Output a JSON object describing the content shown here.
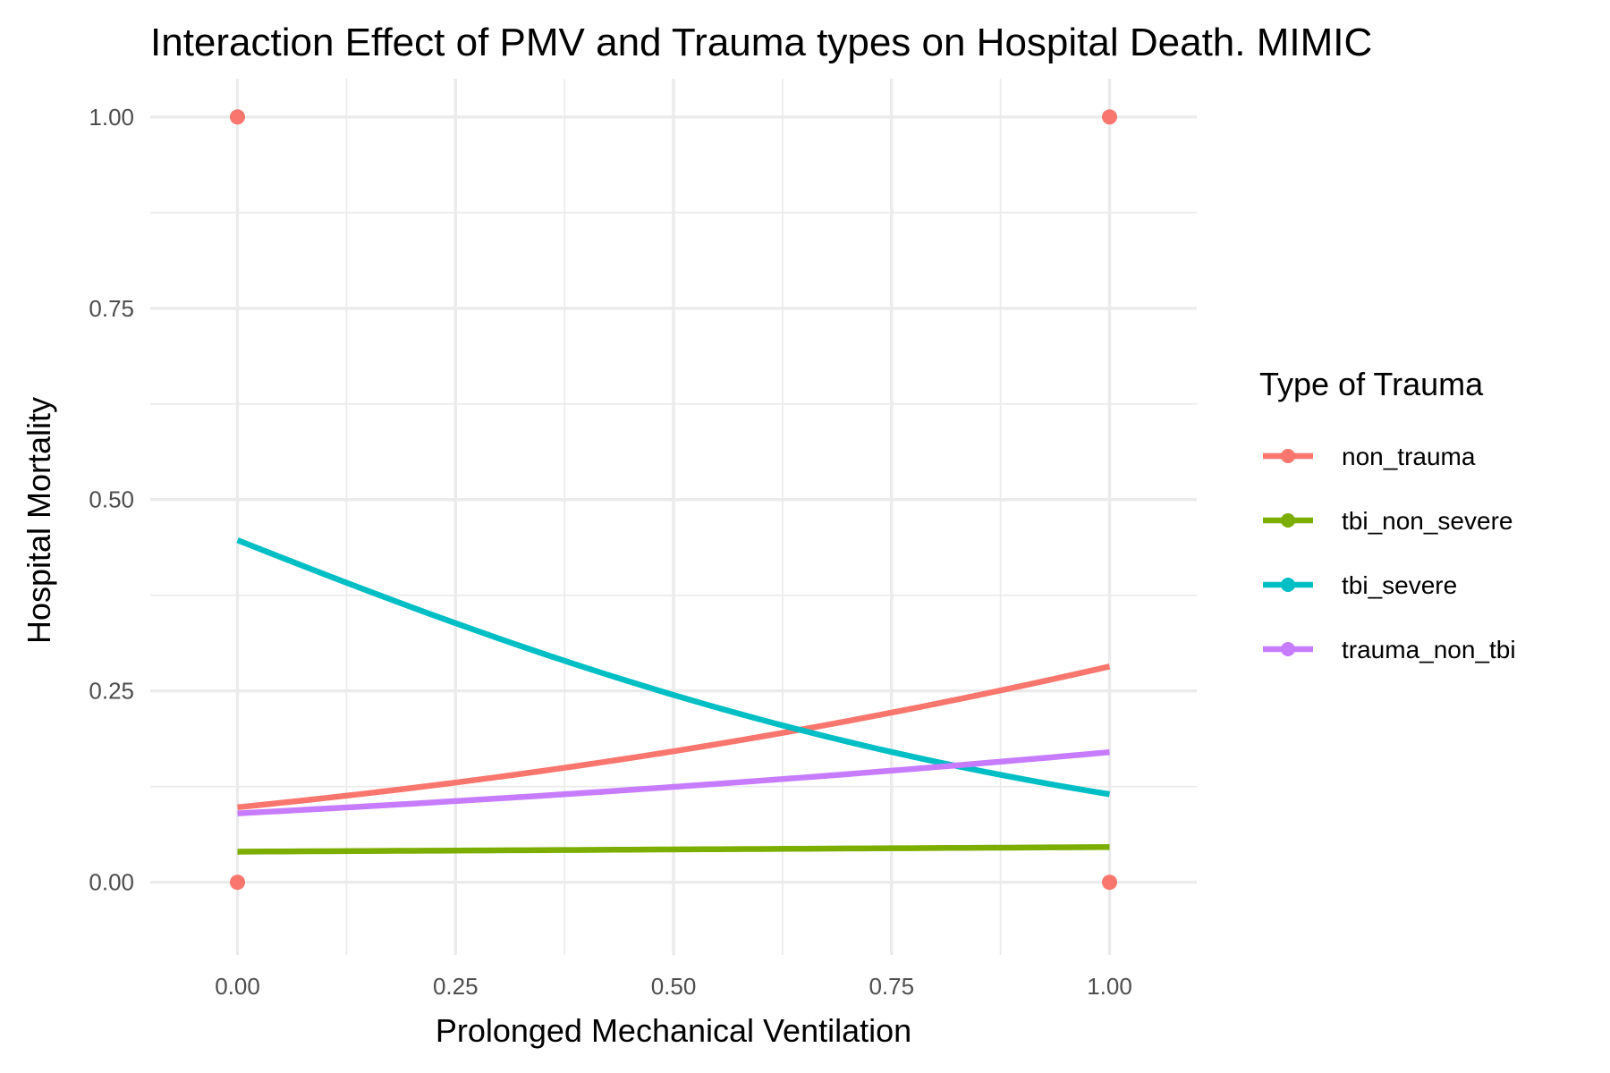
{
  "chart_data": {
    "type": "line",
    "title": "Interaction Effect of PMV and Trauma types on Hospital Death. MIMIC",
    "xlabel": "Prolonged Mechanical Ventilation",
    "ylabel": "Hospital Mortality",
    "xlim": [
      -0.1,
      1.1
    ],
    "ylim": [
      -0.095,
      1.05
    ],
    "x_ticks": [
      "0.00",
      "0.25",
      "0.50",
      "0.75",
      "1.00"
    ],
    "x_tick_values": [
      0,
      0.25,
      0.5,
      0.75,
      1
    ],
    "y_ticks": [
      "0.00",
      "0.25",
      "0.50",
      "0.75",
      "1.00"
    ],
    "y_tick_values": [
      0,
      0.25,
      0.5,
      0.75,
      1
    ],
    "grid": true,
    "legend_title": "Type of Trauma",
    "legend_position": "right",
    "series": [
      {
        "name": "non_trauma",
        "color": "#F8766D",
        "p0": 0.098,
        "p1": 0.282
      },
      {
        "name": "tbi_non_severe",
        "color": "#7CAE00",
        "p0": 0.04,
        "p1": 0.046
      },
      {
        "name": "tbi_severe",
        "color": "#00BFC4",
        "p0": 0.447,
        "p1": 0.115
      },
      {
        "name": "trauma_non_tbi",
        "color": "#C77CFF",
        "p0": 0.09,
        "p1": 0.17
      }
    ],
    "points": [
      {
        "x": 0,
        "y": 1,
        "series": "non_trauma"
      },
      {
        "x": 0,
        "y": 0,
        "series": "non_trauma"
      },
      {
        "x": 1,
        "y": 1,
        "series": "non_trauma"
      },
      {
        "x": 1,
        "y": 0,
        "series": "non_trauma"
      }
    ]
  }
}
